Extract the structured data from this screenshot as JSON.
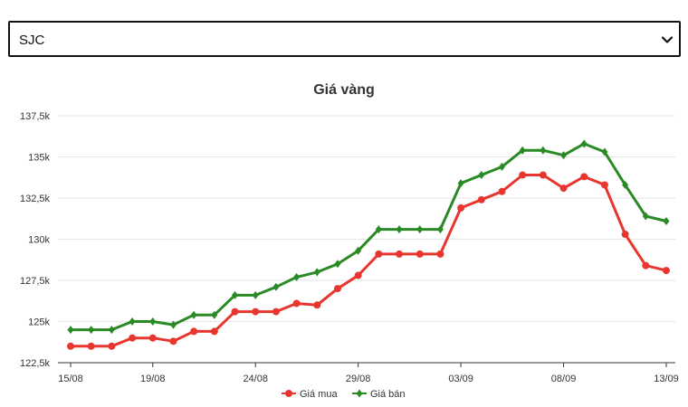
{
  "select": {
    "value": "SJC"
  },
  "colors": {
    "buy": "#e8362f",
    "sell": "#2a8a25",
    "grid": "#e6e6e6",
    "axis": "#333333"
  },
  "chart_data": {
    "type": "line",
    "title": "Giá vàng",
    "xlabel": "",
    "ylabel": "",
    "ylim": [
      122500,
      137500
    ],
    "yticks": [
      122500,
      125000,
      127500,
      130000,
      132500,
      135000,
      137500
    ],
    "ytick_labels": [
      "122,5k",
      "125k",
      "127,5k",
      "130k",
      "132,5k",
      "135k",
      "137,5k"
    ],
    "x": [
      "15/08",
      "16/08",
      "17/08",
      "18/08",
      "19/08",
      "20/08",
      "21/08",
      "22/08",
      "23/08",
      "24/08",
      "25/08",
      "26/08",
      "27/08",
      "28/08",
      "29/08",
      "30/08",
      "31/08",
      "01/09",
      "02/09",
      "03/09",
      "04/09",
      "05/09",
      "06/09",
      "07/09",
      "08/09",
      "09/09",
      "10/09",
      "11/09",
      "12/09",
      "13/09"
    ],
    "xtick_labels": [
      "15/08",
      "19/08",
      "24/08",
      "29/08",
      "03/09",
      "08/09",
      "13/09"
    ],
    "xtick_index": [
      0,
      4,
      9,
      14,
      19,
      24,
      29
    ],
    "grid": true,
    "legend": "bottom",
    "series": [
      {
        "name": "Giá mua",
        "color": "#e8362f",
        "marker": "circle",
        "values": [
          123500,
          123500,
          123500,
          124000,
          124000,
          123800,
          124400,
          124400,
          125600,
          125600,
          125600,
          126100,
          126000,
          127000,
          127800,
          129100,
          129100,
          129100,
          129100,
          131900,
          132400,
          132900,
          133900,
          133900,
          133100,
          133800,
          133300,
          130300,
          128400,
          128100
        ]
      },
      {
        "name": "Giá bán",
        "color": "#2a8a25",
        "marker": "diamond",
        "values": [
          124500,
          124500,
          124500,
          125000,
          125000,
          124800,
          125400,
          125400,
          126600,
          126600,
          127100,
          127700,
          128000,
          128500,
          129300,
          130600,
          130600,
          130600,
          130600,
          133400,
          133900,
          134400,
          135400,
          135400,
          135100,
          135800,
          135300,
          133300,
          131400,
          131100
        ]
      }
    ]
  }
}
